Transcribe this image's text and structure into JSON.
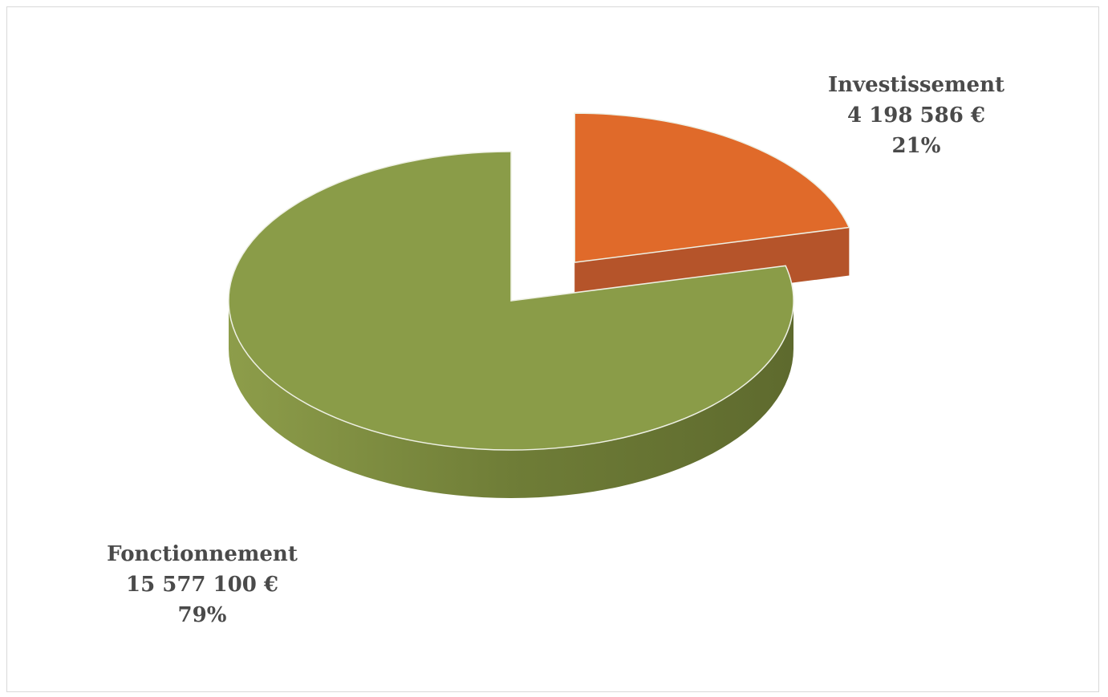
{
  "chart_data": {
    "type": "pie",
    "style": "3d-exploded",
    "categories": [
      "Fonctionnement",
      "Investissement"
    ],
    "values": [
      15577100,
      4198586
    ],
    "value_labels": [
      "15 577 100  €",
      "4 198 586  €"
    ],
    "percent_labels": [
      "79%",
      "21%"
    ],
    "colors": [
      "#8a9c48",
      "#e06a2a"
    ],
    "side_colors": [
      "#6c7a35",
      "#b5542a"
    ],
    "title": "",
    "legend": "none"
  }
}
